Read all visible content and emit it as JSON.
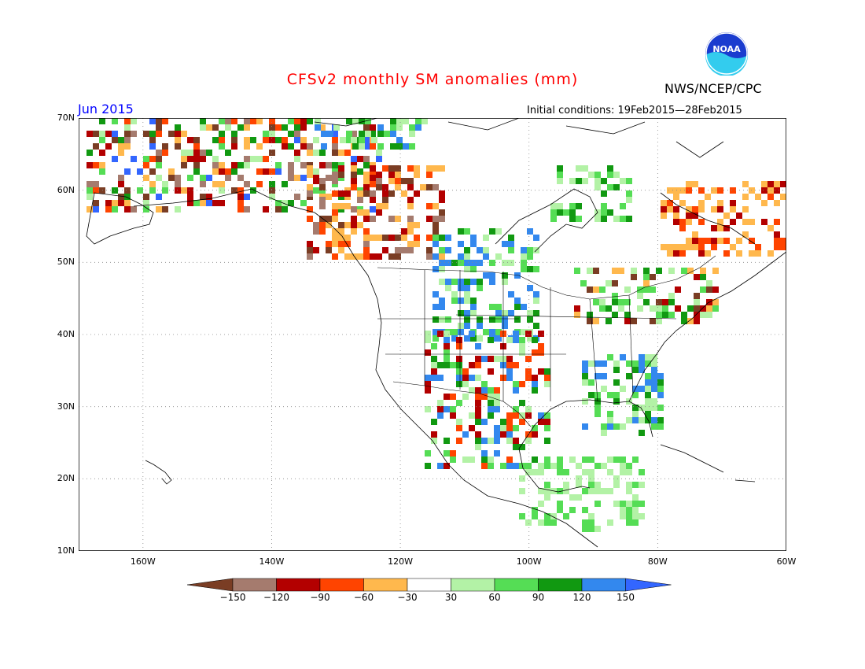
{
  "title": "CFSv2 monthly SM anomalies (mm)",
  "agency": "NWS/NCEP/CPC",
  "logo_text": "NOAA",
  "month": "Jun 2015",
  "initial_conditions": "Initial conditions: 19Feb2015—28Feb2015",
  "lat_labels": [
    "70N",
    "60N",
    "50N",
    "40N",
    "30N",
    "20N",
    "10N"
  ],
  "lon_labels": [
    "160W",
    "140W",
    "120W",
    "100W",
    "80W",
    "60W"
  ],
  "legend": {
    "units": "mm",
    "colors": [
      "#7a3d24",
      "#a57b6e",
      "#b30000",
      "#ff4400",
      "#ffb84d",
      "#ffffff",
      "#b3f2a6",
      "#55dd55",
      "#119911",
      "#3388ee",
      "#3366ff"
    ],
    "labels": [
      "−150",
      "−120",
      "−90",
      "−60",
      "−30",
      "30",
      "60",
      "90",
      "120",
      "150"
    ]
  },
  "colors": {
    "title": "#ff0000",
    "month": "#0000ff",
    "dry_brown": "#8b4a2b",
    "wet_blue": "#3388ee"
  }
}
